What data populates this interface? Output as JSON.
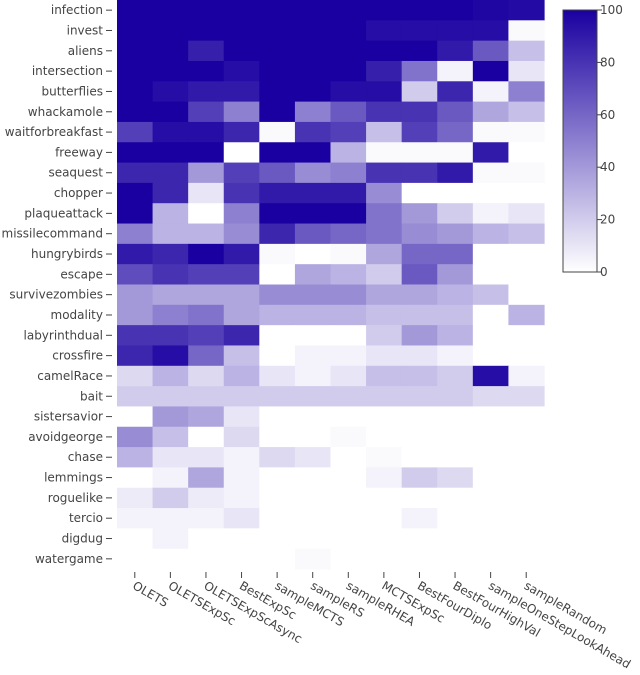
{
  "chart_data": {
    "type": "heatmap",
    "colorscale": [
      "#ffffff",
      "#1a00a0"
    ],
    "zmin": 0,
    "zmax": 100,
    "colorbar_ticks": [
      0,
      20,
      40,
      60,
      80,
      100
    ],
    "columns": [
      "OLETS",
      "OLETSExpSc",
      "OLETSExpScAsync",
      "BestExpSc",
      "sampleMCTS",
      "sampleRS",
      "sampleRHEA",
      "MCTSExpSc",
      "BestFourDiplo",
      "BestFourHighVal",
      "sampleOneStepLookAhead",
      "sampleRandom"
    ],
    "rows": [
      "infection",
      "invest",
      "aliens",
      "intersection",
      "butterflies",
      "whackamole",
      "waitforbreakfast",
      "freeway",
      "seaquest",
      "chopper",
      "plaqueattack",
      "missilecommand",
      "hungrybirds",
      "escape",
      "survivezombies",
      "modality",
      "labyrinthdual",
      "crossfire",
      "camelRace",
      "bait",
      "sistersavior",
      "avoidgeorge",
      "chase",
      "lemmings",
      "roguelike",
      "tercio",
      "digdug",
      "watergame"
    ],
    "values": [
      [
        100,
        100,
        100,
        100,
        100,
        100,
        100,
        100,
        100,
        100,
        98,
        96
      ],
      [
        100,
        100,
        100,
        100,
        100,
        100,
        100,
        95,
        95,
        95,
        95,
        2
      ],
      [
        100,
        100,
        88,
        100,
        100,
        100,
        100,
        100,
        100,
        90,
        65,
        25
      ],
      [
        100,
        100,
        100,
        95,
        100,
        100,
        100,
        88,
        55,
        5,
        100,
        10
      ],
      [
        100,
        95,
        90,
        90,
        100,
        100,
        95,
        95,
        20,
        85,
        5,
        50
      ],
      [
        100,
        100,
        75,
        50,
        100,
        50,
        65,
        80,
        80,
        65,
        35,
        25
      ],
      [
        75,
        95,
        95,
        85,
        2,
        80,
        75,
        25,
        75,
        60,
        2,
        2
      ],
      [
        100,
        100,
        100,
        0,
        100,
        100,
        30,
        2,
        2,
        2,
        90,
        0
      ],
      [
        85,
        85,
        40,
        75,
        65,
        45,
        50,
        80,
        80,
        90,
        2,
        2
      ],
      [
        100,
        85,
        10,
        80,
        90,
        90,
        90,
        45,
        0,
        0,
        0,
        0
      ],
      [
        100,
        30,
        0,
        50,
        100,
        100,
        100,
        55,
        40,
        20,
        5,
        10
      ],
      [
        50,
        30,
        30,
        45,
        85,
        65,
        60,
        55,
        45,
        40,
        30,
        25
      ],
      [
        90,
        85,
        100,
        90,
        2,
        0,
        2,
        35,
        60,
        60,
        0,
        0
      ],
      [
        70,
        80,
        75,
        75,
        0,
        35,
        30,
        20,
        65,
        40,
        0,
        0
      ],
      [
        40,
        35,
        35,
        35,
        45,
        45,
        45,
        35,
        35,
        30,
        25,
        0
      ],
      [
        40,
        50,
        55,
        35,
        30,
        30,
        30,
        25,
        25,
        25,
        0,
        30
      ],
      [
        80,
        80,
        75,
        85,
        0,
        0,
        0,
        20,
        40,
        30,
        0,
        0
      ],
      [
        85,
        95,
        60,
        25,
        0,
        5,
        5,
        10,
        10,
        5,
        0,
        0
      ],
      [
        15,
        30,
        15,
        30,
        10,
        5,
        10,
        25,
        25,
        20,
        95,
        5
      ],
      [
        20,
        20,
        20,
        20,
        20,
        20,
        20,
        20,
        20,
        20,
        15,
        15
      ],
      [
        0,
        40,
        35,
        10,
        0,
        0,
        0,
        0,
        0,
        0,
        0,
        0
      ],
      [
        45,
        25,
        0,
        15,
        0,
        0,
        2,
        0,
        0,
        0,
        0,
        0
      ],
      [
        30,
        10,
        10,
        5,
        15,
        10,
        0,
        2,
        0,
        0,
        0,
        0
      ],
      [
        0,
        5,
        35,
        5,
        0,
        0,
        0,
        5,
        20,
        15,
        0,
        0
      ],
      [
        8,
        20,
        8,
        5,
        0,
        0,
        0,
        0,
        0,
        0,
        0,
        0
      ],
      [
        5,
        5,
        5,
        10,
        0,
        0,
        0,
        0,
        5,
        0,
        0,
        0
      ],
      [
        0,
        5,
        0,
        0,
        0,
        0,
        0,
        0,
        0,
        0,
        0,
        0
      ],
      [
        0,
        0,
        0,
        0,
        0,
        2,
        0,
        0,
        0,
        0,
        0,
        0
      ]
    ]
  }
}
